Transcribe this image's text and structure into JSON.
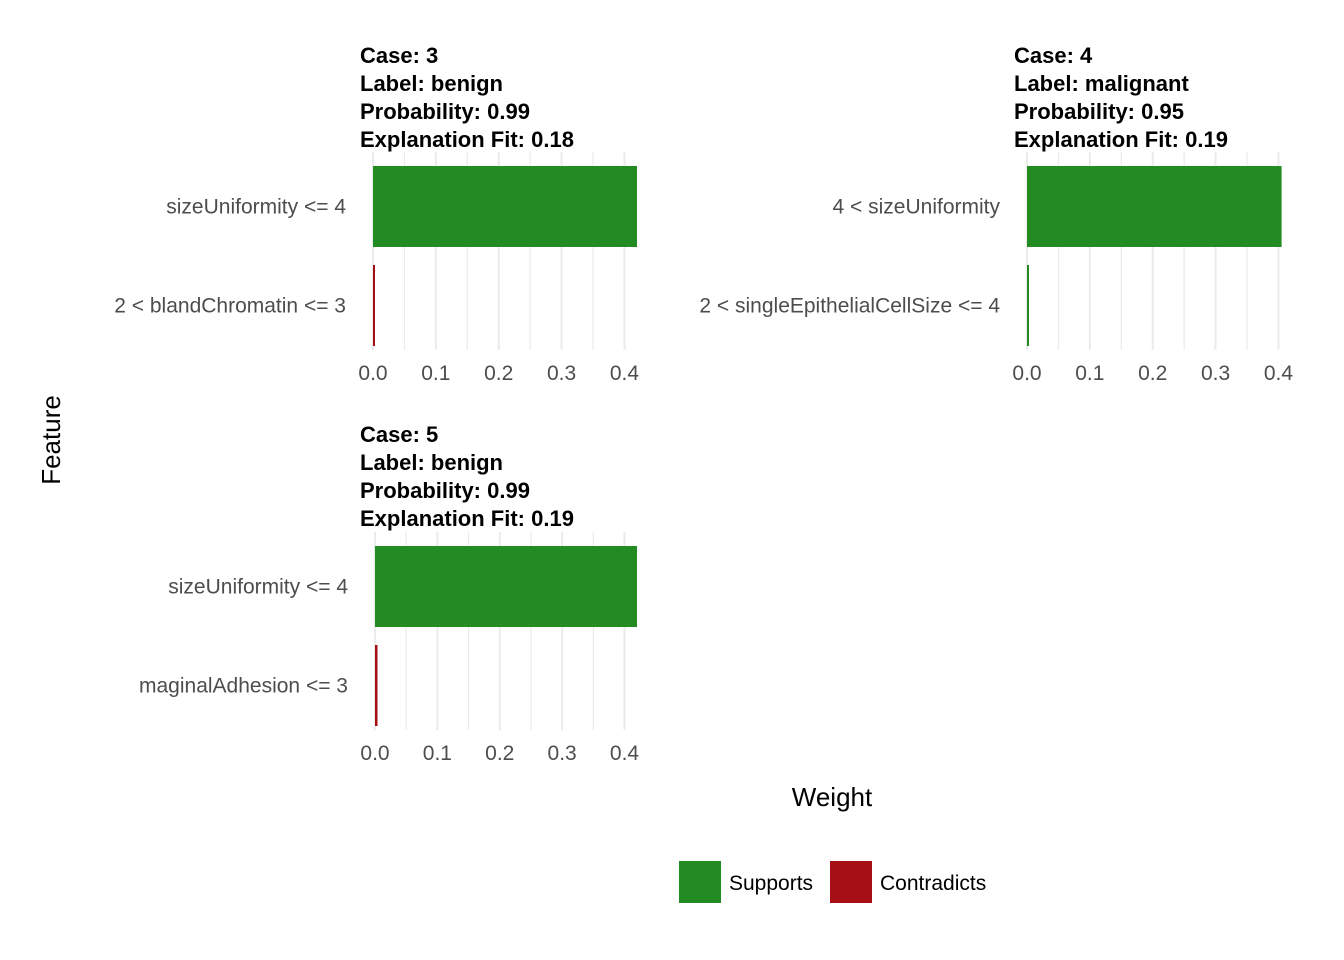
{
  "chart_data": {
    "type": "bar",
    "orientation": "horizontal",
    "xlabel": "Weight",
    "ylabel": "Feature",
    "xlim": [
      0,
      0.42
    ],
    "xticks": [
      "0.0",
      "0.1",
      "0.2",
      "0.3",
      "0.4"
    ],
    "xtick_values": [
      0,
      0.1,
      0.2,
      0.3,
      0.4
    ],
    "grid": true,
    "legend": {
      "placement": "bottom",
      "entries": [
        {
          "label": "Supports",
          "color": "#228B22"
        },
        {
          "label": "Contradicts",
          "color": "#A50F15"
        }
      ]
    },
    "facets": [
      {
        "title_lines": [
          "Case: 3",
          "Label: benign",
          "Probability: 0.99",
          "Explanation Fit: 0.18"
        ],
        "features": [
          {
            "label": "sizeUniformity <= 4",
            "weight": 0.42,
            "type": "Supports"
          },
          {
            "label": "2 < blandChromatin <= 3",
            "weight": 0.002,
            "type": "Contradicts"
          }
        ]
      },
      {
        "title_lines": [
          "Case: 4",
          "Label: malignant",
          "Probability: 0.95",
          "Explanation Fit: 0.19"
        ],
        "features": [
          {
            "label": "4 < sizeUniformity",
            "weight": 0.405,
            "type": "Supports"
          },
          {
            "label": "2 < singleEpithelialCellSize <= 4",
            "weight": 0.003,
            "type": "Supports"
          }
        ]
      },
      {
        "title_lines": [
          "Case: 5",
          "Label: benign",
          "Probability: 0.99",
          "Explanation Fit: 0.19"
        ],
        "features": [
          {
            "label": "sizeUniformity <= 4",
            "weight": 0.42,
            "type": "Supports"
          },
          {
            "label": "maginalAdhesion <= 3",
            "weight": 0.004,
            "type": "Contradicts"
          }
        ]
      }
    ]
  }
}
